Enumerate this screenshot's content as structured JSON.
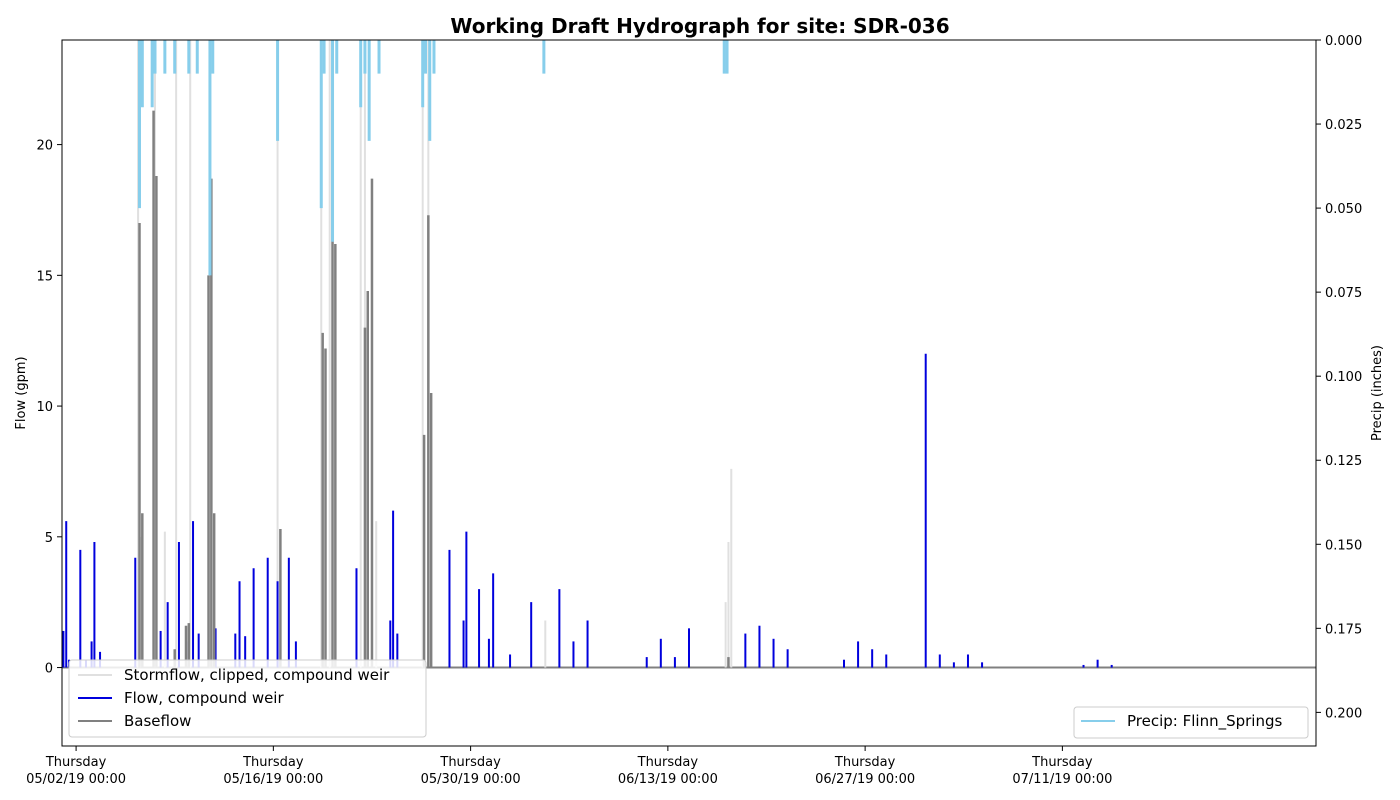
{
  "chart_data": {
    "type": "line",
    "title": "Working Draft Hydrograph for site: SDR-036",
    "ylabel": "Flow (gpm)",
    "y2label": "Precip (inches)",
    "ylim": [
      -3,
      24
    ],
    "y2lim": [
      0.21,
      0.0
    ],
    "y2_inverted": true,
    "xlim_days": [
      -1,
      88
    ],
    "yticks": [
      0,
      5,
      10,
      15,
      20
    ],
    "y2ticks": [
      0.0,
      0.025,
      0.05,
      0.075,
      0.1,
      0.125,
      0.15,
      0.175,
      0.2
    ],
    "y2tick_labels": [
      "0.000",
      "0.025",
      "0.050",
      "0.075",
      "0.100",
      "0.125",
      "0.150",
      "0.175",
      "0.200"
    ],
    "xticks": [
      {
        "day": 0,
        "line1": "Thursday",
        "line2": "05/02/19 00:00"
      },
      {
        "day": 14,
        "line1": "Thursday",
        "line2": "05/16/19 00:00"
      },
      {
        "day": 28,
        "line1": "Thursday",
        "line2": "05/30/19 00:00"
      },
      {
        "day": 42,
        "line1": "Thursday",
        "line2": "06/13/19 00:00"
      },
      {
        "day": 56,
        "line1": "Thursday",
        "line2": "06/27/19 00:00"
      },
      {
        "day": 70,
        "line1": "Thursday",
        "line2": "07/11/19 00:00"
      }
    ],
    "legend_left_placement": "lower-left",
    "legend_right_placement": "lower-right",
    "series": [
      {
        "name": "Stormflow, clipped, compound weir",
        "axis": "left",
        "color": "#e0e0e0",
        "spikes": [
          [
            4.4,
            24
          ],
          [
            4.6,
            5
          ],
          [
            5.6,
            24
          ],
          [
            6.3,
            5.2
          ],
          [
            7.1,
            24
          ],
          [
            8.1,
            24
          ],
          [
            9.5,
            24
          ],
          [
            14.3,
            24
          ],
          [
            17.4,
            24
          ],
          [
            18.0,
            24
          ],
          [
            20.2,
            24
          ],
          [
            20.5,
            23
          ],
          [
            21.3,
            5.6
          ],
          [
            24.6,
            24
          ],
          [
            25.0,
            24
          ],
          [
            33.3,
            1.8
          ],
          [
            46.1,
            2.5
          ],
          [
            46.3,
            4.8
          ],
          [
            46.5,
            7.6
          ]
        ]
      },
      {
        "name": "Flow, compound weir",
        "axis": "left",
        "color": "#0000dd",
        "spikes": [
          [
            -0.9,
            1.4
          ],
          [
            -0.7,
            5.6
          ],
          [
            -0.5,
            0.3
          ],
          [
            0.3,
            4.5
          ],
          [
            0.7,
            0.3
          ],
          [
            1.1,
            1.0
          ],
          [
            1.3,
            4.8
          ],
          [
            1.7,
            0.6
          ],
          [
            4.2,
            4.2
          ],
          [
            6.0,
            1.4
          ],
          [
            6.5,
            2.5
          ],
          [
            7.3,
            4.8
          ],
          [
            8.0,
            1.0
          ],
          [
            8.3,
            5.6
          ],
          [
            8.7,
            1.3
          ],
          [
            9.9,
            1.5
          ],
          [
            11.3,
            1.3
          ],
          [
            11.6,
            3.3
          ],
          [
            12.0,
            1.2
          ],
          [
            12.6,
            3.8
          ],
          [
            13.6,
            4.2
          ],
          [
            14.3,
            3.3
          ],
          [
            15.1,
            4.2
          ],
          [
            15.6,
            1.0
          ],
          [
            19.9,
            3.8
          ],
          [
            22.3,
            1.8
          ],
          [
            22.5,
            6.0
          ],
          [
            22.8,
            1.3
          ],
          [
            26.5,
            4.5
          ],
          [
            27.5,
            1.8
          ],
          [
            27.7,
            5.2
          ],
          [
            28.6,
            3.0
          ],
          [
            29.3,
            1.1
          ],
          [
            29.6,
            3.6
          ],
          [
            30.8,
            0.5
          ],
          [
            32.3,
            2.5
          ],
          [
            34.3,
            3.0
          ],
          [
            35.3,
            1.0
          ],
          [
            36.3,
            1.8
          ],
          [
            40.5,
            0.4
          ],
          [
            41.5,
            1.1
          ],
          [
            42.5,
            0.4
          ],
          [
            43.5,
            1.5
          ],
          [
            47.5,
            1.3
          ],
          [
            48.5,
            1.6
          ],
          [
            49.5,
            1.1
          ],
          [
            50.5,
            0.7
          ],
          [
            54.5,
            0.3
          ],
          [
            55.5,
            1.0
          ],
          [
            56.5,
            0.7
          ],
          [
            57.5,
            0.5
          ],
          [
            60.3,
            12.0
          ],
          [
            61.3,
            0.5
          ],
          [
            62.3,
            0.2
          ],
          [
            63.3,
            0.5
          ],
          [
            64.3,
            0.2
          ],
          [
            71.5,
            0.1
          ],
          [
            72.5,
            0.3
          ],
          [
            73.5,
            0.1
          ]
        ]
      },
      {
        "name": "Baseflow",
        "axis": "left",
        "color": "#808080",
        "spikes": [
          [
            4.5,
            17.0
          ],
          [
            4.7,
            5.9
          ],
          [
            5.5,
            21.3
          ],
          [
            5.7,
            18.8
          ],
          [
            7.0,
            0.7
          ],
          [
            7.8,
            1.6
          ],
          [
            8.0,
            1.7
          ],
          [
            9.4,
            15.0
          ],
          [
            9.6,
            18.7
          ],
          [
            9.8,
            5.9
          ],
          [
            14.5,
            5.3
          ],
          [
            17.5,
            12.8
          ],
          [
            17.7,
            12.2
          ],
          [
            18.2,
            21.3
          ],
          [
            18.4,
            16.2
          ],
          [
            20.5,
            13.0
          ],
          [
            20.7,
            14.4
          ],
          [
            21.0,
            18.7
          ],
          [
            24.7,
            8.9
          ],
          [
            25.0,
            17.3
          ],
          [
            25.2,
            10.5
          ],
          [
            46.3,
            0.4
          ]
        ]
      },
      {
        "name": "Precip: Flinn_Springs",
        "axis": "right",
        "color": "#87ceeb",
        "bars": [
          [
            4.5,
            0.05
          ],
          [
            4.7,
            0.02
          ],
          [
            5.4,
            0.02
          ],
          [
            5.6,
            0.01
          ],
          [
            6.3,
            0.01
          ],
          [
            7.0,
            0.01
          ],
          [
            8.0,
            0.01
          ],
          [
            8.6,
            0.01
          ],
          [
            9.5,
            0.07
          ],
          [
            9.7,
            0.01
          ],
          [
            14.3,
            0.03
          ],
          [
            17.4,
            0.05
          ],
          [
            17.6,
            0.01
          ],
          [
            18.2,
            0.06
          ],
          [
            18.5,
            0.01
          ],
          [
            20.2,
            0.02
          ],
          [
            20.5,
            0.01
          ],
          [
            20.8,
            0.03
          ],
          [
            21.5,
            0.01
          ],
          [
            24.6,
            0.02
          ],
          [
            24.8,
            0.01
          ],
          [
            25.1,
            0.03
          ],
          [
            25.4,
            0.01
          ],
          [
            33.2,
            0.01
          ],
          [
            46.0,
            0.01
          ],
          [
            46.2,
            0.01
          ]
        ]
      }
    ]
  }
}
